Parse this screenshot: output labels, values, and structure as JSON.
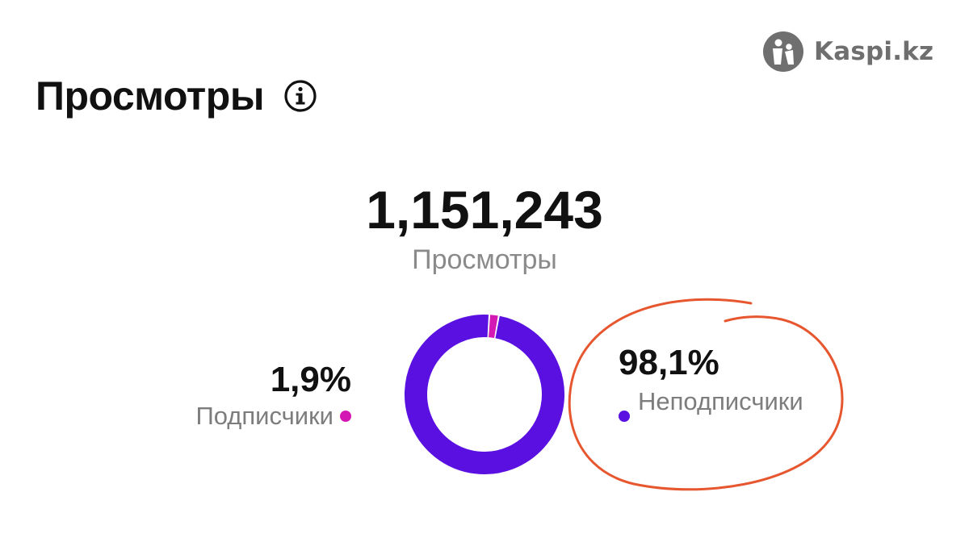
{
  "watermark": {
    "text": "Kaspi.kz",
    "icon": "kaspi-logo-icon"
  },
  "header": {
    "title": "Просмотры",
    "info_icon": "info-icon"
  },
  "summary": {
    "total": "1,151,243",
    "label": "Просмотры"
  },
  "chart_data": {
    "type": "pie",
    "variant": "donut",
    "total": 1151243,
    "slices": [
      {
        "label": "Подписчики",
        "value": 1.9,
        "value_label": "1,9%",
        "color": "#d418b4"
      },
      {
        "label": "Неподписчики",
        "value": 98.1,
        "value_label": "98,1%",
        "color": "#5a10e0"
      }
    ],
    "legend": "sides"
  },
  "colors": {
    "annotation": "#e7572f",
    "donut_main": "#5a10e0",
    "donut_small": "#d418b4"
  }
}
